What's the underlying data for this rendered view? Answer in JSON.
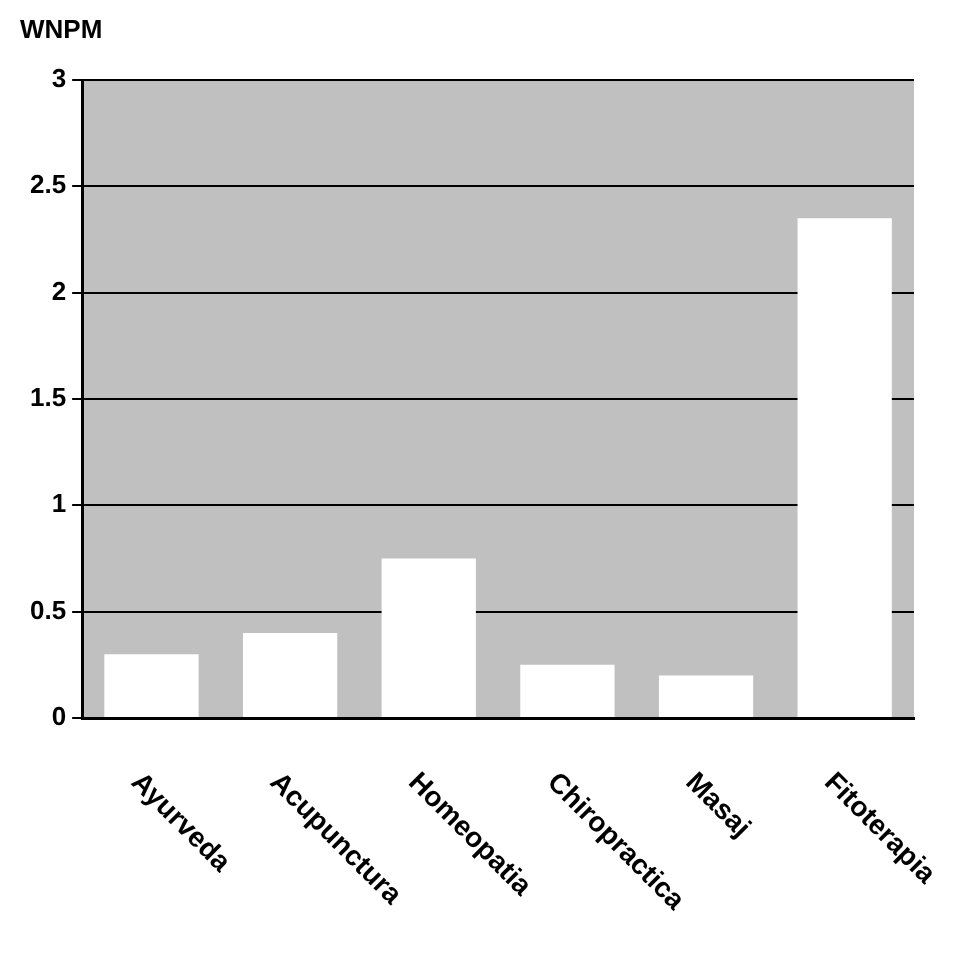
{
  "chart_data": {
    "type": "bar",
    "ylabel": "WNPM",
    "categories": [
      "Ayurveda",
      "Acupunctura",
      "Homeopatia",
      "Chiropractica",
      "Masaj",
      "Fitoterapia"
    ],
    "values": [
      0.3,
      0.4,
      0.75,
      0.25,
      0.2,
      2.35
    ],
    "color": "#ffffff",
    "ylim": [
      0,
      3
    ],
    "yticks": [
      0,
      0.5,
      1,
      1.5,
      2,
      2.5,
      3
    ],
    "grid": "y"
  }
}
